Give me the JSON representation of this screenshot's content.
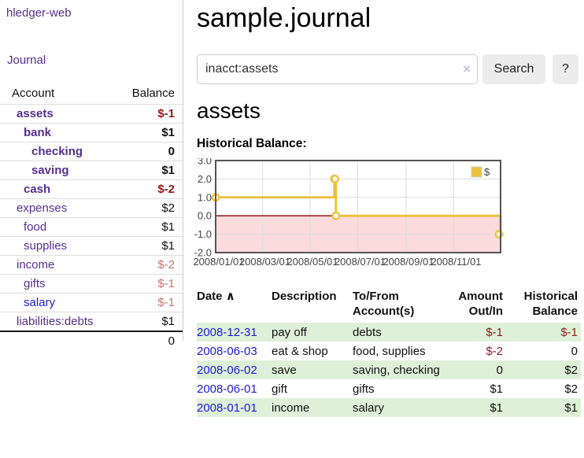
{
  "colors": {
    "accent_purple": "#552e91",
    "link_blue": "#1a1ae0",
    "negative_red": "#8e1b1b",
    "negative_muted_red": "#c57474",
    "row_stripe_green": "#dff0d8",
    "chart_series_yellow": "#edc240",
    "chart_negative_fill": "#fbdbdb",
    "chart_zero_line_red": "#8b0000",
    "chart_border_gray": "#545454"
  },
  "sidebar": {
    "brand": "hledger-web",
    "journal_link": "Journal",
    "accounts": {
      "header": {
        "account": "Account",
        "balance": "Balance"
      },
      "rows": [
        {
          "name": "assets",
          "balance": "$-1",
          "depth": 0,
          "bold": true,
          "balance_style": "neg",
          "name_style": "purple"
        },
        {
          "name": "bank",
          "balance": "$1",
          "depth": 1,
          "bold": true,
          "balance_style": "pos",
          "name_style": "purple"
        },
        {
          "name": "checking",
          "balance": "0",
          "depth": 2,
          "bold": true,
          "balance_style": "pos",
          "name_style": "purple"
        },
        {
          "name": "saving",
          "balance": "$1",
          "depth": 2,
          "bold": true,
          "balance_style": "pos",
          "name_style": "purple"
        },
        {
          "name": "cash",
          "balance": "$-2",
          "depth": 1,
          "bold": true,
          "balance_style": "neg",
          "name_style": "purple"
        },
        {
          "name": "expenses",
          "balance": "$2",
          "depth": 0,
          "bold": false,
          "balance_style": "pos",
          "name_style": "purple"
        },
        {
          "name": "food",
          "balance": "$1",
          "depth": 1,
          "bold": false,
          "balance_style": "pos",
          "name_style": "purple"
        },
        {
          "name": "supplies",
          "balance": "$1",
          "depth": 1,
          "bold": false,
          "balance_style": "pos",
          "name_style": "purple"
        },
        {
          "name": "income",
          "balance": "$-2",
          "depth": 0,
          "bold": false,
          "balance_style": "neg-muted",
          "name_style": "purple"
        },
        {
          "name": "gifts",
          "balance": "$-1",
          "depth": 1,
          "bold": false,
          "balance_style": "neg-muted",
          "name_style": "purple"
        },
        {
          "name": "salary",
          "balance": "$-1",
          "depth": 1,
          "bold": false,
          "balance_style": "neg-muted",
          "name_style": "blue"
        },
        {
          "name": "liabilities:debts",
          "balance": "$1",
          "depth": 0,
          "bold": false,
          "balance_style": "pos",
          "name_style": "purple"
        }
      ],
      "total": "0"
    }
  },
  "main": {
    "title": "sample.journal",
    "search": {
      "value": "inacct:assets",
      "clear_icon": "×",
      "search_button": "Search",
      "help_button": "?"
    },
    "account_heading": "assets",
    "chart_heading": "Historical Balance:",
    "chart_data": {
      "type": "line",
      "title": "Historical Balance:",
      "legend": [
        {
          "label": "$",
          "color": "#edc240"
        }
      ],
      "legend_position": "top-right",
      "grid": true,
      "x_range": [
        "2008-01-01",
        "2008-12-31"
      ],
      "ylim": [
        -2.0,
        3.0
      ],
      "y_ticks": [
        "3.0",
        "2.0",
        "1.0",
        "0.0",
        "-1.0",
        "-2.0"
      ],
      "x_tick_dates": [
        "2008-01-01",
        "2008-03-01",
        "2008-05-01",
        "2008-07-01",
        "2008-09-01",
        "2008-11-01"
      ],
      "x_tick_labels": [
        "2008/01/01",
        "2008/03/01",
        "2008/05/01",
        "2008/07/01",
        "2008/09/01",
        "2008/11/01"
      ],
      "series": [
        {
          "name": "$",
          "step": true,
          "points": [
            {
              "date": "2008-01-01",
              "value": 1.0
            },
            {
              "date": "2008-06-01",
              "value": 2.0
            },
            {
              "date": "2008-06-02",
              "value": 2.0
            },
            {
              "date": "2008-06-03",
              "value": 0.0
            },
            {
              "date": "2008-12-31",
              "value": -1.0
            }
          ]
        }
      ],
      "zero_line": true,
      "negative_region_shaded": true
    },
    "register": {
      "headers": {
        "date": "Date",
        "sort_icon": "∧",
        "description": "Description",
        "account_line1": "To/From",
        "account_line2": "Account(s)",
        "amount_line1": "Amount",
        "amount_line2": "Out/In",
        "balance_line1": "Historical",
        "balance_line2": "Balance"
      },
      "rows": [
        {
          "date": "2008-12-31",
          "description": "pay off",
          "accounts": "debts",
          "amount": "$-1",
          "amount_style": "neg",
          "balance": "$-1",
          "balance_style": "neg"
        },
        {
          "date": "2008-06-03",
          "description": "eat & shop",
          "accounts": "food, supplies",
          "amount": "$-2",
          "amount_style": "neg",
          "balance": "0",
          "balance_style": "pos"
        },
        {
          "date": "2008-06-02",
          "description": "save",
          "accounts": "saving, checking",
          "amount": "0",
          "amount_style": "pos",
          "balance": "$2",
          "balance_style": "pos"
        },
        {
          "date": "2008-06-01",
          "description": "gift",
          "accounts": "gifts",
          "amount": "$1",
          "amount_style": "pos",
          "balance": "$2",
          "balance_style": "pos"
        },
        {
          "date": "2008-01-01",
          "description": "income",
          "accounts": "salary",
          "amount": "$1",
          "amount_style": "pos",
          "balance": "$1",
          "balance_style": "pos"
        }
      ]
    }
  }
}
